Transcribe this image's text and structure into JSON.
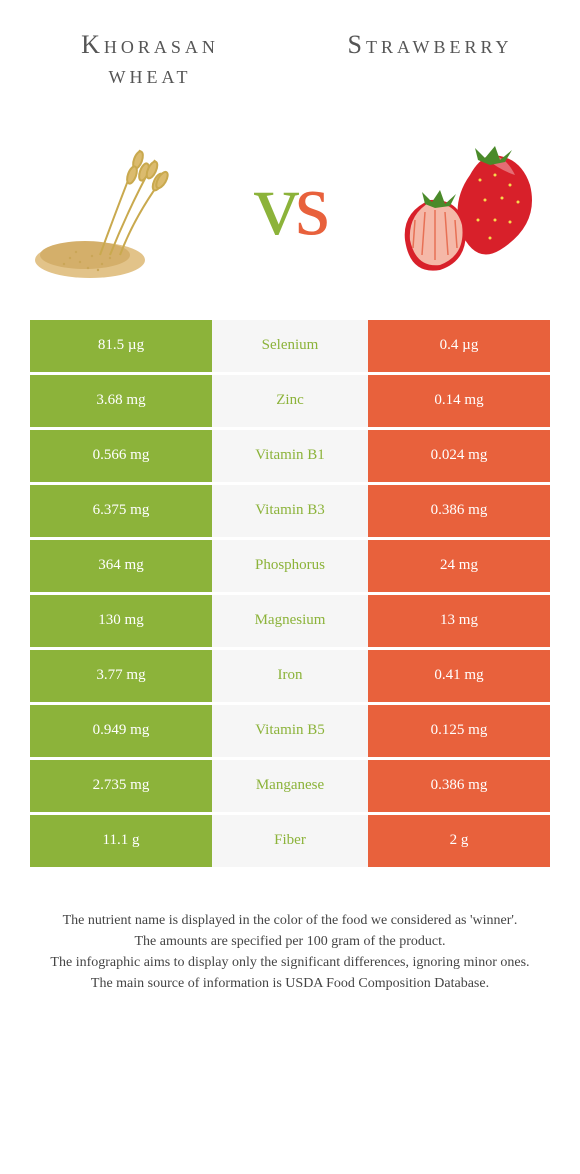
{
  "left_food": "Khorasan wheat",
  "right_food": "Strawberry",
  "colors": {
    "left": "#8cb33a",
    "right": "#e8613c",
    "mid_bg": "#f6f6f6",
    "text_white": "#ffffff"
  },
  "rows": [
    {
      "nutrient": "Selenium",
      "left": "81.5 µg",
      "right": "0.4 µg",
      "winner": "left"
    },
    {
      "nutrient": "Zinc",
      "left": "3.68 mg",
      "right": "0.14 mg",
      "winner": "left"
    },
    {
      "nutrient": "Vitamin B1",
      "left": "0.566 mg",
      "right": "0.024 mg",
      "winner": "left"
    },
    {
      "nutrient": "Vitamin B3",
      "left": "6.375 mg",
      "right": "0.386 mg",
      "winner": "left"
    },
    {
      "nutrient": "Phosphorus",
      "left": "364 mg",
      "right": "24 mg",
      "winner": "left"
    },
    {
      "nutrient": "Magnesium",
      "left": "130 mg",
      "right": "13 mg",
      "winner": "left"
    },
    {
      "nutrient": "Iron",
      "left": "3.77 mg",
      "right": "0.41 mg",
      "winner": "left"
    },
    {
      "nutrient": "Vitamin B5",
      "left": "0.949 mg",
      "right": "0.125 mg",
      "winner": "left"
    },
    {
      "nutrient": "Manganese",
      "left": "2.735 mg",
      "right": "0.386 mg",
      "winner": "left"
    },
    {
      "nutrient": "Fiber",
      "left": "11.1 g",
      "right": "2 g",
      "winner": "left"
    }
  ],
  "footer_lines": [
    "The nutrient name is displayed in the color of the food we considered as 'winner'.",
    "The amounts are specified per 100 gram of the product.",
    "The infographic aims to display only the significant differences, ignoring minor ones.",
    "The main source of information is USDA Food Composition Database."
  ]
}
